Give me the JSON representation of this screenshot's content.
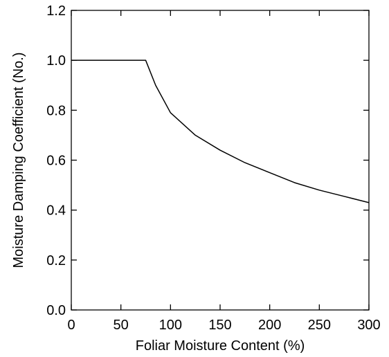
{
  "chart_data": {
    "type": "line",
    "title": "",
    "xlabel": "Foliar Moisture Content (%)",
    "ylabel": "Moisture Damping Coefficient (No.)",
    "xlim": [
      0,
      300
    ],
    "ylim": [
      0,
      1.2
    ],
    "x_ticks": [
      0,
      50,
      100,
      150,
      200,
      250,
      300
    ],
    "x_tick_labels": [
      "0",
      "50",
      "100",
      "150",
      "200",
      "250",
      "300"
    ],
    "y_ticks": [
      0,
      0.2,
      0.4,
      0.6,
      0.8,
      1.0,
      1.2
    ],
    "y_tick_labels": [
      "0.0",
      "0.2",
      "0.4",
      "0.6",
      "0.8",
      "1.0",
      "1.2"
    ],
    "grid": false,
    "legend": false,
    "series": [
      {
        "color": "#000000",
        "x": [
          0,
          25,
          50,
          75,
          85,
          100,
          125,
          150,
          175,
          200,
          225,
          250,
          275,
          300
        ],
        "y": [
          1.0,
          1.0,
          1.0,
          1.0,
          0.9,
          0.79,
          0.7,
          0.64,
          0.59,
          0.55,
          0.51,
          0.48,
          0.455,
          0.43
        ]
      }
    ]
  }
}
